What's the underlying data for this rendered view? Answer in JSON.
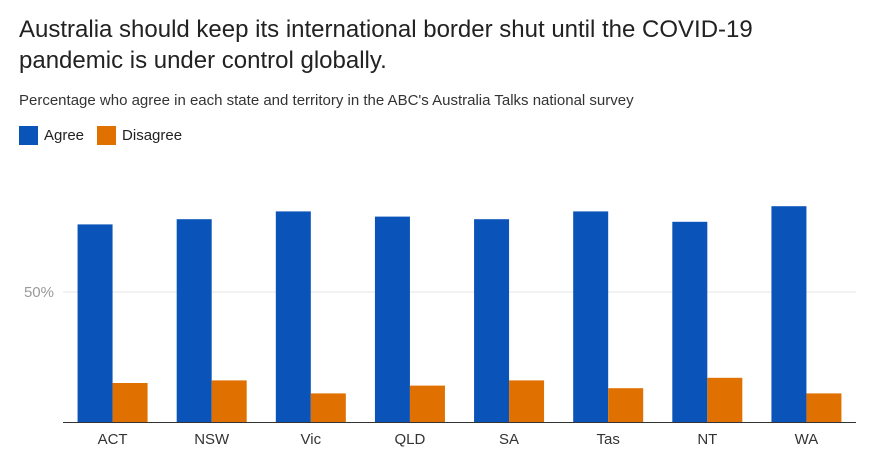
{
  "chart_data": {
    "type": "bar",
    "title": "Australia should keep its international border shut until the COVID-19 pandemic is under control globally.",
    "subtitle": "Percentage who agree in each state and territory in the ABC's Australia Talks national survey",
    "categories": [
      "ACT",
      "NSW",
      "Vic",
      "QLD",
      "SA",
      "Tas",
      "NT",
      "WA"
    ],
    "series": [
      {
        "name": "Agree",
        "color": "#0a53b8",
        "values": [
          76,
          78,
          81,
          79,
          78,
          81,
          77,
          83
        ]
      },
      {
        "name": "Disagree",
        "color": "#e07000",
        "values": [
          15,
          16,
          11,
          14,
          16,
          13,
          17,
          11
        ]
      }
    ],
    "ylim": [
      0,
      100
    ],
    "yticks": [
      {
        "value": 50,
        "label": "50%"
      }
    ],
    "legend_position": "top-left",
    "grid": true
  }
}
